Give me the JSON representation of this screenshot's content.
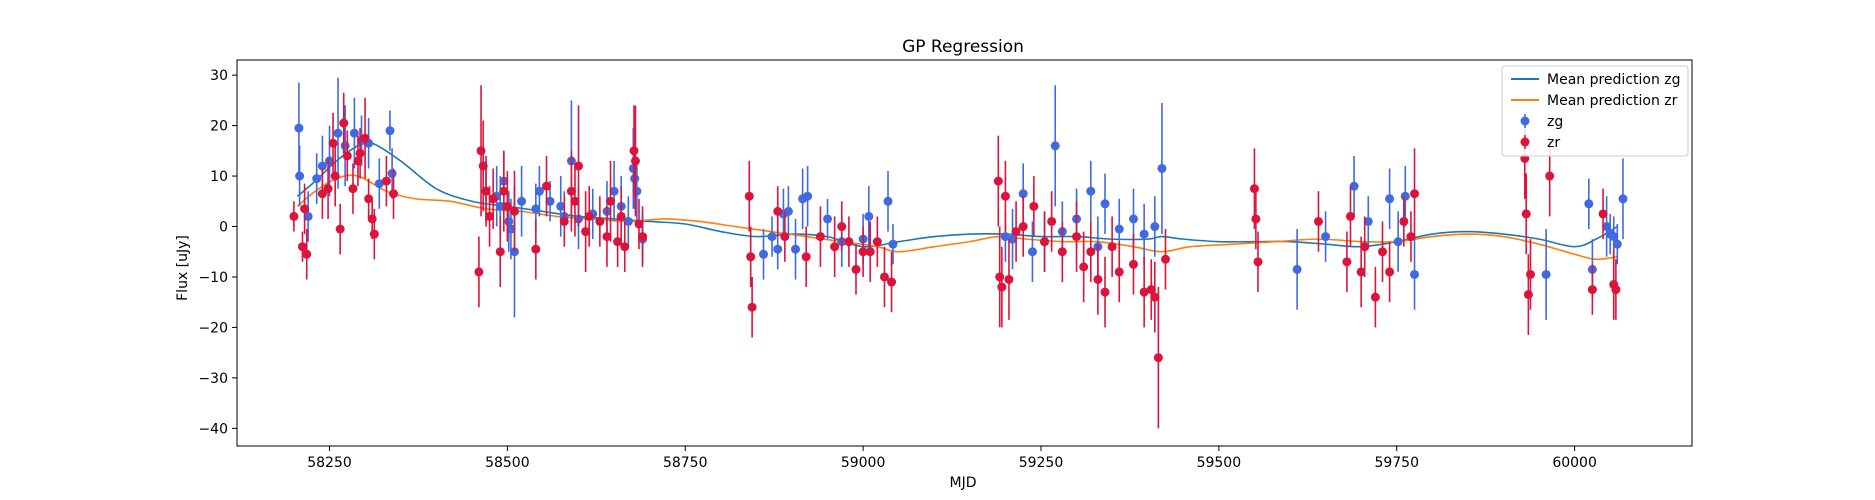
{
  "chart_data": {
    "type": "scatter",
    "title": "GP Regression",
    "xlabel": "MJD",
    "ylabel": "Flux [uJy]",
    "xlim": [
      58120,
      60165
    ],
    "ylim": [
      -43.5,
      33
    ],
    "xticks": [
      58250,
      58500,
      58750,
      59000,
      59250,
      59500,
      59750,
      60000
    ],
    "yticks": [
      -40,
      -30,
      -20,
      -10,
      0,
      10,
      20,
      30
    ],
    "grid": false,
    "legend_position": "top-right",
    "colors": {
      "zg_line": "#1f77b4",
      "zr_line": "#ff7f0e",
      "zg_points": "#4169e1",
      "zr_points": "#dc143c"
    },
    "legend": [
      {
        "label": "Mean prediction zg",
        "kind": "line",
        "color": "#1f77b4"
      },
      {
        "label": "Mean prediction zr",
        "kind": "line",
        "color": "#ff7f0e"
      },
      {
        "label": "zg",
        "kind": "errorbar",
        "color": "#4169e1"
      },
      {
        "label": "zr",
        "kind": "errorbar",
        "color": "#dc143c"
      }
    ],
    "series": [
      {
        "name": "Mean prediction zg",
        "kind": "line",
        "color": "#1f77b4",
        "x": [
          58205,
          58230,
          58260,
          58290,
          58310,
          58350,
          58400,
          58450,
          58500,
          58550,
          58600,
          58650,
          58700,
          58750,
          58800,
          58850,
          58900,
          58950,
          59000,
          59050,
          59100,
          59150,
          59200,
          59250,
          59300,
          59350,
          59400,
          59420,
          59450,
          59500,
          59550,
          59600,
          59650,
          59700,
          59750,
          59800,
          59850,
          59900,
          59950,
          60000,
          60030,
          60060
        ],
        "y": [
          6,
          9,
          13,
          16,
          16.5,
          13,
          7.5,
          5,
          4,
          3,
          2,
          1.5,
          1,
          0.5,
          -1,
          -2,
          -1.5,
          -2,
          -4,
          -3,
          -2,
          -1.5,
          -1.5,
          -2,
          -2,
          -2.5,
          -2.5,
          -2,
          -2.5,
          -3,
          -3,
          -3,
          -3.5,
          -4,
          -3,
          -1.5,
          -1,
          -1.5,
          -2.5,
          -4,
          -2.5,
          0
        ]
      },
      {
        "name": "Mean prediction zr",
        "kind": "line",
        "color": "#ff7f0e",
        "x": [
          58205,
          58230,
          58260,
          58290,
          58330,
          58370,
          58420,
          58470,
          58520,
          58570,
          58620,
          58670,
          58720,
          58770,
          58820,
          58870,
          58920,
          58970,
          59020,
          59050,
          59100,
          59150,
          59190,
          59230,
          59280,
          59330,
          59380,
          59420,
          59460,
          59520,
          59580,
          59640,
          59700,
          59750,
          59800,
          59850,
          59900,
          59950,
          60000,
          60030,
          60060
        ],
        "y": [
          4,
          7,
          9.5,
          10,
          7,
          5.5,
          5,
          3.5,
          3,
          2,
          1.5,
          1,
          1.5,
          1,
          0,
          -1,
          -2,
          -3,
          -4,
          -5,
          -4,
          -3,
          -2,
          -2.5,
          -3,
          -3,
          -4,
          -5,
          -4,
          -3.5,
          -3,
          -2.5,
          -3,
          -3,
          -2,
          -1.5,
          -2,
          -3.5,
          -5.5,
          -6.5,
          -6
        ]
      },
      {
        "name": "zg",
        "kind": "errorbar",
        "color": "#4169e1",
        "points": [
          [
            58207,
            19.5,
            9
          ],
          [
            58208,
            10,
            6
          ],
          [
            58220,
            2,
            5
          ],
          [
            58232,
            9.5,
            5
          ],
          [
            58240,
            12,
            6
          ],
          [
            58250,
            13,
            7
          ],
          [
            58262,
            18.5,
            11
          ],
          [
            58272,
            16,
            8
          ],
          [
            58285,
            18.5,
            7
          ],
          [
            58295,
            17,
            5
          ],
          [
            58305,
            16.5,
            5
          ],
          [
            58320,
            8.5,
            5
          ],
          [
            58335,
            19,
            4
          ],
          [
            58338,
            10.5,
            5
          ],
          [
            58470,
            7,
            6
          ],
          [
            58485,
            6,
            6
          ],
          [
            58490,
            4,
            6
          ],
          [
            58495,
            9,
            6
          ],
          [
            58502,
            1,
            6
          ],
          [
            58505,
            -0.5,
            6
          ],
          [
            58510,
            -5,
            13
          ],
          [
            58520,
            5,
            7
          ],
          [
            58540,
            3.5,
            5
          ],
          [
            58545,
            7,
            5
          ],
          [
            58560,
            5,
            4
          ],
          [
            58575,
            4,
            6
          ],
          [
            58580,
            2,
            5
          ],
          [
            58590,
            13,
            12
          ],
          [
            58600,
            1.5,
            6
          ],
          [
            58620,
            2.5,
            5
          ],
          [
            58640,
            3,
            6
          ],
          [
            58650,
            7,
            6
          ],
          [
            58660,
            4,
            6
          ],
          [
            58670,
            1,
            5
          ],
          [
            58677,
            11.5,
            8
          ],
          [
            58679,
            9.5,
            6
          ],
          [
            58682,
            7,
            6
          ],
          [
            58690,
            -2.5,
            5
          ],
          [
            58860,
            -5.5,
            5
          ],
          [
            58872,
            -2,
            4
          ],
          [
            58880,
            -4.5,
            4
          ],
          [
            58888,
            2.5,
            5
          ],
          [
            58895,
            3,
            5
          ],
          [
            58905,
            -4.5,
            6
          ],
          [
            58915,
            5.5,
            6
          ],
          [
            58922,
            6,
            6
          ],
          [
            58950,
            1.5,
            4
          ],
          [
            58970,
            -3,
            5
          ],
          [
            59000,
            -2.5,
            5
          ],
          [
            59008,
            2,
            6
          ],
          [
            59035,
            5,
            6
          ],
          [
            59042,
            -3.5,
            4
          ],
          [
            59200,
            -2,
            5
          ],
          [
            59210,
            -2.5,
            6
          ],
          [
            59225,
            6.5,
            6
          ],
          [
            59238,
            -5,
            6
          ],
          [
            59255,
            -3,
            6
          ],
          [
            59270,
            16,
            12
          ],
          [
            59280,
            -1,
            6
          ],
          [
            59300,
            1.5,
            6
          ],
          [
            59320,
            7,
            6
          ],
          [
            59330,
            -4,
            6
          ],
          [
            59340,
            4.5,
            6
          ],
          [
            59360,
            -0.5,
            6
          ],
          [
            59380,
            1.5,
            6
          ],
          [
            59395,
            -1.5,
            6
          ],
          [
            59410,
            0,
            6
          ],
          [
            59420,
            11.5,
            13
          ],
          [
            59610,
            -8.5,
            8
          ],
          [
            59650,
            -2,
            5
          ],
          [
            59690,
            8,
            6
          ],
          [
            59710,
            1,
            5
          ],
          [
            59740,
            5.5,
            6
          ],
          [
            59752,
            -3,
            6
          ],
          [
            59762,
            6,
            6
          ],
          [
            59775,
            -9.5,
            7
          ],
          [
            59960,
            -9.5,
            9
          ],
          [
            60020,
            4.5,
            5
          ],
          [
            60025,
            -8.5,
            6
          ],
          [
            60045,
            0,
            6
          ],
          [
            60050,
            -1.5,
            4
          ],
          [
            60055,
            -2,
            4
          ],
          [
            60060,
            -3.5,
            4
          ],
          [
            60068,
            5.5,
            8
          ]
        ]
      },
      {
        "name": "zr",
        "kind": "errorbar",
        "color": "#dc143c",
        "points": [
          [
            58200,
            2,
            3
          ],
          [
            58212,
            -4,
            3
          ],
          [
            58215,
            3.5,
            5
          ],
          [
            58218,
            -5.5,
            5
          ],
          [
            58240,
            6.5,
            5
          ],
          [
            58248,
            7.5,
            6
          ],
          [
            58255,
            16.5,
            6
          ],
          [
            58258,
            10,
            6
          ],
          [
            58265,
            -0.5,
            5
          ],
          [
            58270,
            20.5,
            6
          ],
          [
            58275,
            14,
            5
          ],
          [
            58283,
            7.5,
            5
          ],
          [
            58290,
            13,
            5
          ],
          [
            58293,
            14.5,
            5
          ],
          [
            58300,
            17.5,
            8
          ],
          [
            58305,
            5.5,
            4
          ],
          [
            58310,
            1.5,
            4
          ],
          [
            58313,
            -1.5,
            5
          ],
          [
            58330,
            9,
            5
          ],
          [
            58340,
            6.5,
            5
          ],
          [
            58460,
            -9,
            7
          ],
          [
            58463,
            15,
            13
          ],
          [
            58466,
            12,
            9
          ],
          [
            58470,
            7,
            7
          ],
          [
            58475,
            2,
            6
          ],
          [
            58480,
            5.5,
            6
          ],
          [
            58490,
            -5,
            7
          ],
          [
            58495,
            7,
            8
          ],
          [
            58500,
            4,
            7
          ],
          [
            58510,
            3,
            8
          ],
          [
            58540,
            -4.5,
            6
          ],
          [
            58555,
            8,
            6
          ],
          [
            58580,
            1,
            5
          ],
          [
            58590,
            7,
            8
          ],
          [
            58595,
            5,
            7
          ],
          [
            58600,
            12,
            12
          ],
          [
            58610,
            -1,
            8
          ],
          [
            58615,
            2,
            6
          ],
          [
            58630,
            1,
            5
          ],
          [
            58640,
            -2,
            6
          ],
          [
            58645,
            5,
            8
          ],
          [
            58655,
            -3,
            5
          ],
          [
            58660,
            2,
            6
          ],
          [
            58665,
            -4,
            5
          ],
          [
            58678,
            15,
            9
          ],
          [
            58680,
            13,
            11
          ],
          [
            58685,
            0.5,
            5
          ],
          [
            58690,
            -2,
            6
          ],
          [
            58840,
            6,
            7
          ],
          [
            58842,
            -6,
            6
          ],
          [
            58844,
            -16,
            6
          ],
          [
            58880,
            3,
            5
          ],
          [
            58890,
            -2,
            5
          ],
          [
            58920,
            -6,
            6
          ],
          [
            58940,
            -2,
            6
          ],
          [
            58960,
            -4,
            6
          ],
          [
            58970,
            0,
            5
          ],
          [
            58980,
            -3,
            5
          ],
          [
            58990,
            -8.5,
            5
          ],
          [
            59000,
            -5,
            5
          ],
          [
            59010,
            -5,
            6
          ],
          [
            59020,
            -3,
            5
          ],
          [
            59030,
            -10,
            6
          ],
          [
            59040,
            -11,
            6
          ],
          [
            59190,
            9,
            9
          ],
          [
            59192,
            -10,
            10
          ],
          [
            59195,
            -12,
            8
          ],
          [
            59200,
            6,
            7
          ],
          [
            59205,
            -10.5,
            8
          ],
          [
            59215,
            -1,
            6
          ],
          [
            59225,
            0,
            6
          ],
          [
            59240,
            4,
            6
          ],
          [
            59255,
            -3,
            6
          ],
          [
            59265,
            1,
            6
          ],
          [
            59280,
            -5,
            6
          ],
          [
            59300,
            -2,
            7
          ],
          [
            59310,
            -8,
            7
          ],
          [
            59320,
            -5,
            6
          ],
          [
            59330,
            -10.5,
            7
          ],
          [
            59340,
            -13,
            7
          ],
          [
            59350,
            -4,
            6
          ],
          [
            59360,
            -9,
            6
          ],
          [
            59380,
            -7.5,
            6
          ],
          [
            59395,
            -13,
            7
          ],
          [
            59405,
            -12.5,
            6
          ],
          [
            59410,
            -14,
            7
          ],
          [
            59415,
            -26,
            14
          ],
          [
            59425,
            -6.5,
            6
          ],
          [
            59550,
            7.5,
            8
          ],
          [
            59552,
            1.5,
            6
          ],
          [
            59555,
            -7,
            6
          ],
          [
            59640,
            1,
            6
          ],
          [
            59680,
            -7,
            6
          ],
          [
            59685,
            2,
            6
          ],
          [
            59700,
            -9,
            7
          ],
          [
            59705,
            -4,
            6
          ],
          [
            59720,
            -14,
            6
          ],
          [
            59730,
            -5,
            6
          ],
          [
            59740,
            -9,
            6
          ],
          [
            59760,
            1,
            5
          ],
          [
            59770,
            -2,
            5
          ],
          [
            59775,
            6.5,
            9
          ],
          [
            59930,
            13.5,
            8
          ],
          [
            59932,
            2.5,
            8
          ],
          [
            59935,
            -13.5,
            8
          ],
          [
            59938,
            -9.5,
            7
          ],
          [
            59965,
            10,
            8
          ],
          [
            60025,
            -12.5,
            5
          ],
          [
            60040,
            2.5,
            5
          ],
          [
            60055,
            -11.5,
            7
          ],
          [
            60058,
            -12.5,
            6
          ]
        ]
      }
    ]
  }
}
